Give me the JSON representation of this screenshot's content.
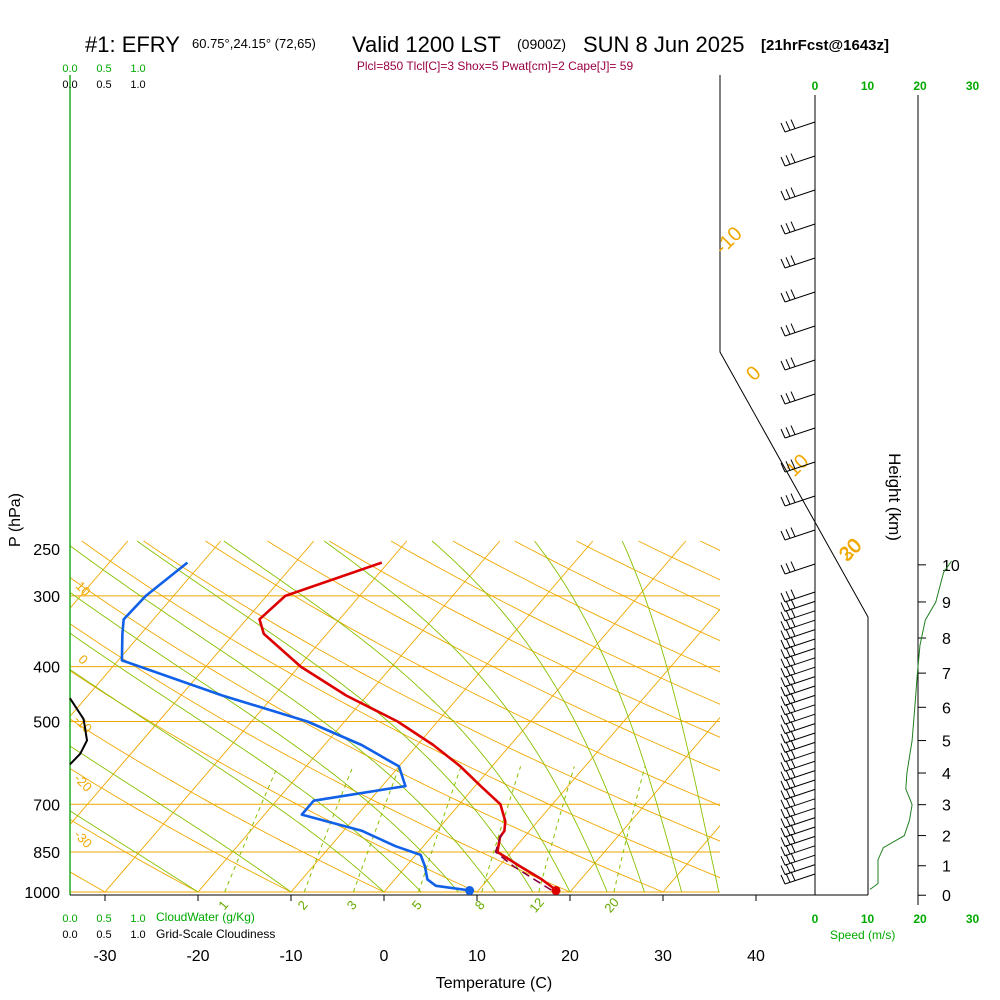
{
  "header": {
    "station": "#1: EFRY",
    "coords": "60.75°,24.15° (72,65)",
    "valid": "Valid 1200 LST",
    "zulu": "(0900Z)",
    "date": "SUN 8 Jun 2025",
    "run": "[21hrFcst@1643z]",
    "params": "Plcl=850 Tlcl[C]=3 Shox=5 Pwat[cm]=2 Cape[J]= 59"
  },
  "colors": {
    "temperature": "#dd0000",
    "dewpoint": "#1060e8",
    "parcel": "#880044",
    "isotherm": "#f0a800",
    "isobar": "#f0a800",
    "dry_adiabat": "#f0a800",
    "moist_adiabat": "#88c000",
    "mixing_ratio": "#88c000",
    "cloud": "#000000",
    "wind_speed": "#208020",
    "green_text": "#00aa00",
    "title": "#000000",
    "params_text": "#990044"
  },
  "chart_data": {
    "type": "skew-t",
    "xlabel": "Temperature (C)",
    "ylabel": "P (hPa)",
    "right_label": "Height (km)",
    "xlim": [
      -30,
      40
    ],
    "x_ticks": [
      -30,
      -20,
      -10,
      0,
      10,
      20,
      30,
      40
    ],
    "pressure_ticks": [
      250,
      300,
      400,
      500,
      700,
      850,
      1000
    ],
    "height_ticks": [
      0,
      1,
      2,
      3,
      4,
      5,
      6,
      7,
      8,
      9,
      10
    ],
    "series": [
      {
        "name": "temperature",
        "points": [
          {
            "p": 262,
            "t": -30.7
          },
          {
            "p": 300,
            "t": -38.0
          },
          {
            "p": 330,
            "t": -38.6
          },
          {
            "p": 350,
            "t": -36.8
          },
          {
            "p": 400,
            "t": -29.8
          },
          {
            "p": 450,
            "t": -22.2
          },
          {
            "p": 500,
            "t": -14.3
          },
          {
            "p": 550,
            "t": -8.3
          },
          {
            "p": 600,
            "t": -3.4
          },
          {
            "p": 650,
            "t": 0.6
          },
          {
            "p": 700,
            "t": 4.4
          },
          {
            "p": 750,
            "t": 6.5
          },
          {
            "p": 780,
            "t": 7.3
          },
          {
            "p": 800,
            "t": 7.4
          },
          {
            "p": 850,
            "t": 8.5
          },
          {
            "p": 900,
            "t": 12.2
          },
          {
            "p": 950,
            "t": 15.8
          },
          {
            "p": 980,
            "t": 17.6
          },
          {
            "p": 992,
            "t": 18.2
          }
        ]
      },
      {
        "name": "dewpoint",
        "points": [
          {
            "p": 262,
            "t": -51.6
          },
          {
            "p": 300,
            "t": -53.0
          },
          {
            "p": 330,
            "t": -53.2
          },
          {
            "p": 350,
            "t": -52.0
          },
          {
            "p": 390,
            "t": -49.6
          },
          {
            "p": 450,
            "t": -35.5
          },
          {
            "p": 500,
            "t": -24.0
          },
          {
            "p": 550,
            "t": -16.0
          },
          {
            "p": 600,
            "t": -10.0
          },
          {
            "p": 650,
            "t": -7.5
          },
          {
            "p": 690,
            "t": -16.0
          },
          {
            "p": 730,
            "t": -16.0
          },
          {
            "p": 780,
            "t": -8.0
          },
          {
            "p": 830,
            "t": -3.0
          },
          {
            "p": 860,
            "t": 0.5
          },
          {
            "p": 900,
            "t": 2.0
          },
          {
            "p": 950,
            "t": 3.5
          },
          {
            "p": 975,
            "t": 5.0
          },
          {
            "p": 992,
            "t": 8.7
          }
        ]
      },
      {
        "name": "parcel",
        "points": [
          {
            "p": 992,
            "t": 17.8
          },
          {
            "p": 950,
            "t": 15.0
          },
          {
            "p": 900,
            "t": 11.5
          },
          {
            "p": 850,
            "t": 8.3
          },
          {
            "p": 800,
            "t": 7.4
          },
          {
            "p": 780,
            "t": 7.2
          }
        ]
      }
    ],
    "cloud_water": [
      {
        "p": 455,
        "v": 0.0
      },
      {
        "p": 495,
        "v": 0.2
      },
      {
        "p": 540,
        "v": 0.25
      },
      {
        "p": 570,
        "v": 0.15
      },
      {
        "p": 595,
        "v": 0.0
      }
    ],
    "wind_speed_profile": [
      {
        "h": 10.1,
        "v": 26.0
      },
      {
        "h": 9.8,
        "v": 24.5
      },
      {
        "h": 9.0,
        "v": 23.0
      },
      {
        "h": 8.5,
        "v": 21.0
      },
      {
        "h": 7.8,
        "v": 20.0
      },
      {
        "h": 7.0,
        "v": 19.5
      },
      {
        "h": 6.0,
        "v": 19.0
      },
      {
        "h": 5.0,
        "v": 18.5
      },
      {
        "h": 4.0,
        "v": 17.5
      },
      {
        "h": 3.5,
        "v": 17.3
      },
      {
        "h": 3.0,
        "v": 18.5
      },
      {
        "h": 2.5,
        "v": 18.0
      },
      {
        "h": 2.0,
        "v": 17.0
      },
      {
        "h": 1.6,
        "v": 13.0
      },
      {
        "h": 1.2,
        "v": 12.0
      },
      {
        "h": 0.8,
        "v": 12.0
      },
      {
        "h": 0.4,
        "v": 12.0
      },
      {
        "h": 0.2,
        "v": 10.5
      }
    ],
    "wind_barbs_count": 45,
    "surface_points": {
      "temperature": 18.2,
      "dewpoint": 8.7
    },
    "scales": {
      "cloud_water_top": [
        "0.0",
        "0.5",
        "1.0"
      ],
      "cloud_water_label": "CloudWater (g/Kg)",
      "cloudiness_label": "Grid-Scale Cloudiness",
      "speed_top": [
        "0",
        "10",
        "20",
        "30"
      ],
      "speed_label": "Speed (m/s)"
    },
    "isotherm_labels": [
      "-10",
      "0",
      "10",
      "20",
      "30"
    ],
    "isotherm_label_values": [
      -10,
      0,
      10,
      20,
      30
    ],
    "mixing_ratio_values": [
      1,
      2,
      3,
      5,
      8,
      12,
      20
    ],
    "mixing_ratio_labels": [
      "1",
      "2",
      "3",
      "5",
      "8",
      "12",
      "20"
    ],
    "adiabat_labels": [
      "10",
      "0",
      "-10",
      "-20",
      "-30"
    ],
    "adiabat_label_values": [
      10,
      0,
      -10,
      -20,
      -30
    ],
    "adiabat_label_pressures": [
      300,
      400,
      520,
      660,
      830
    ]
  }
}
